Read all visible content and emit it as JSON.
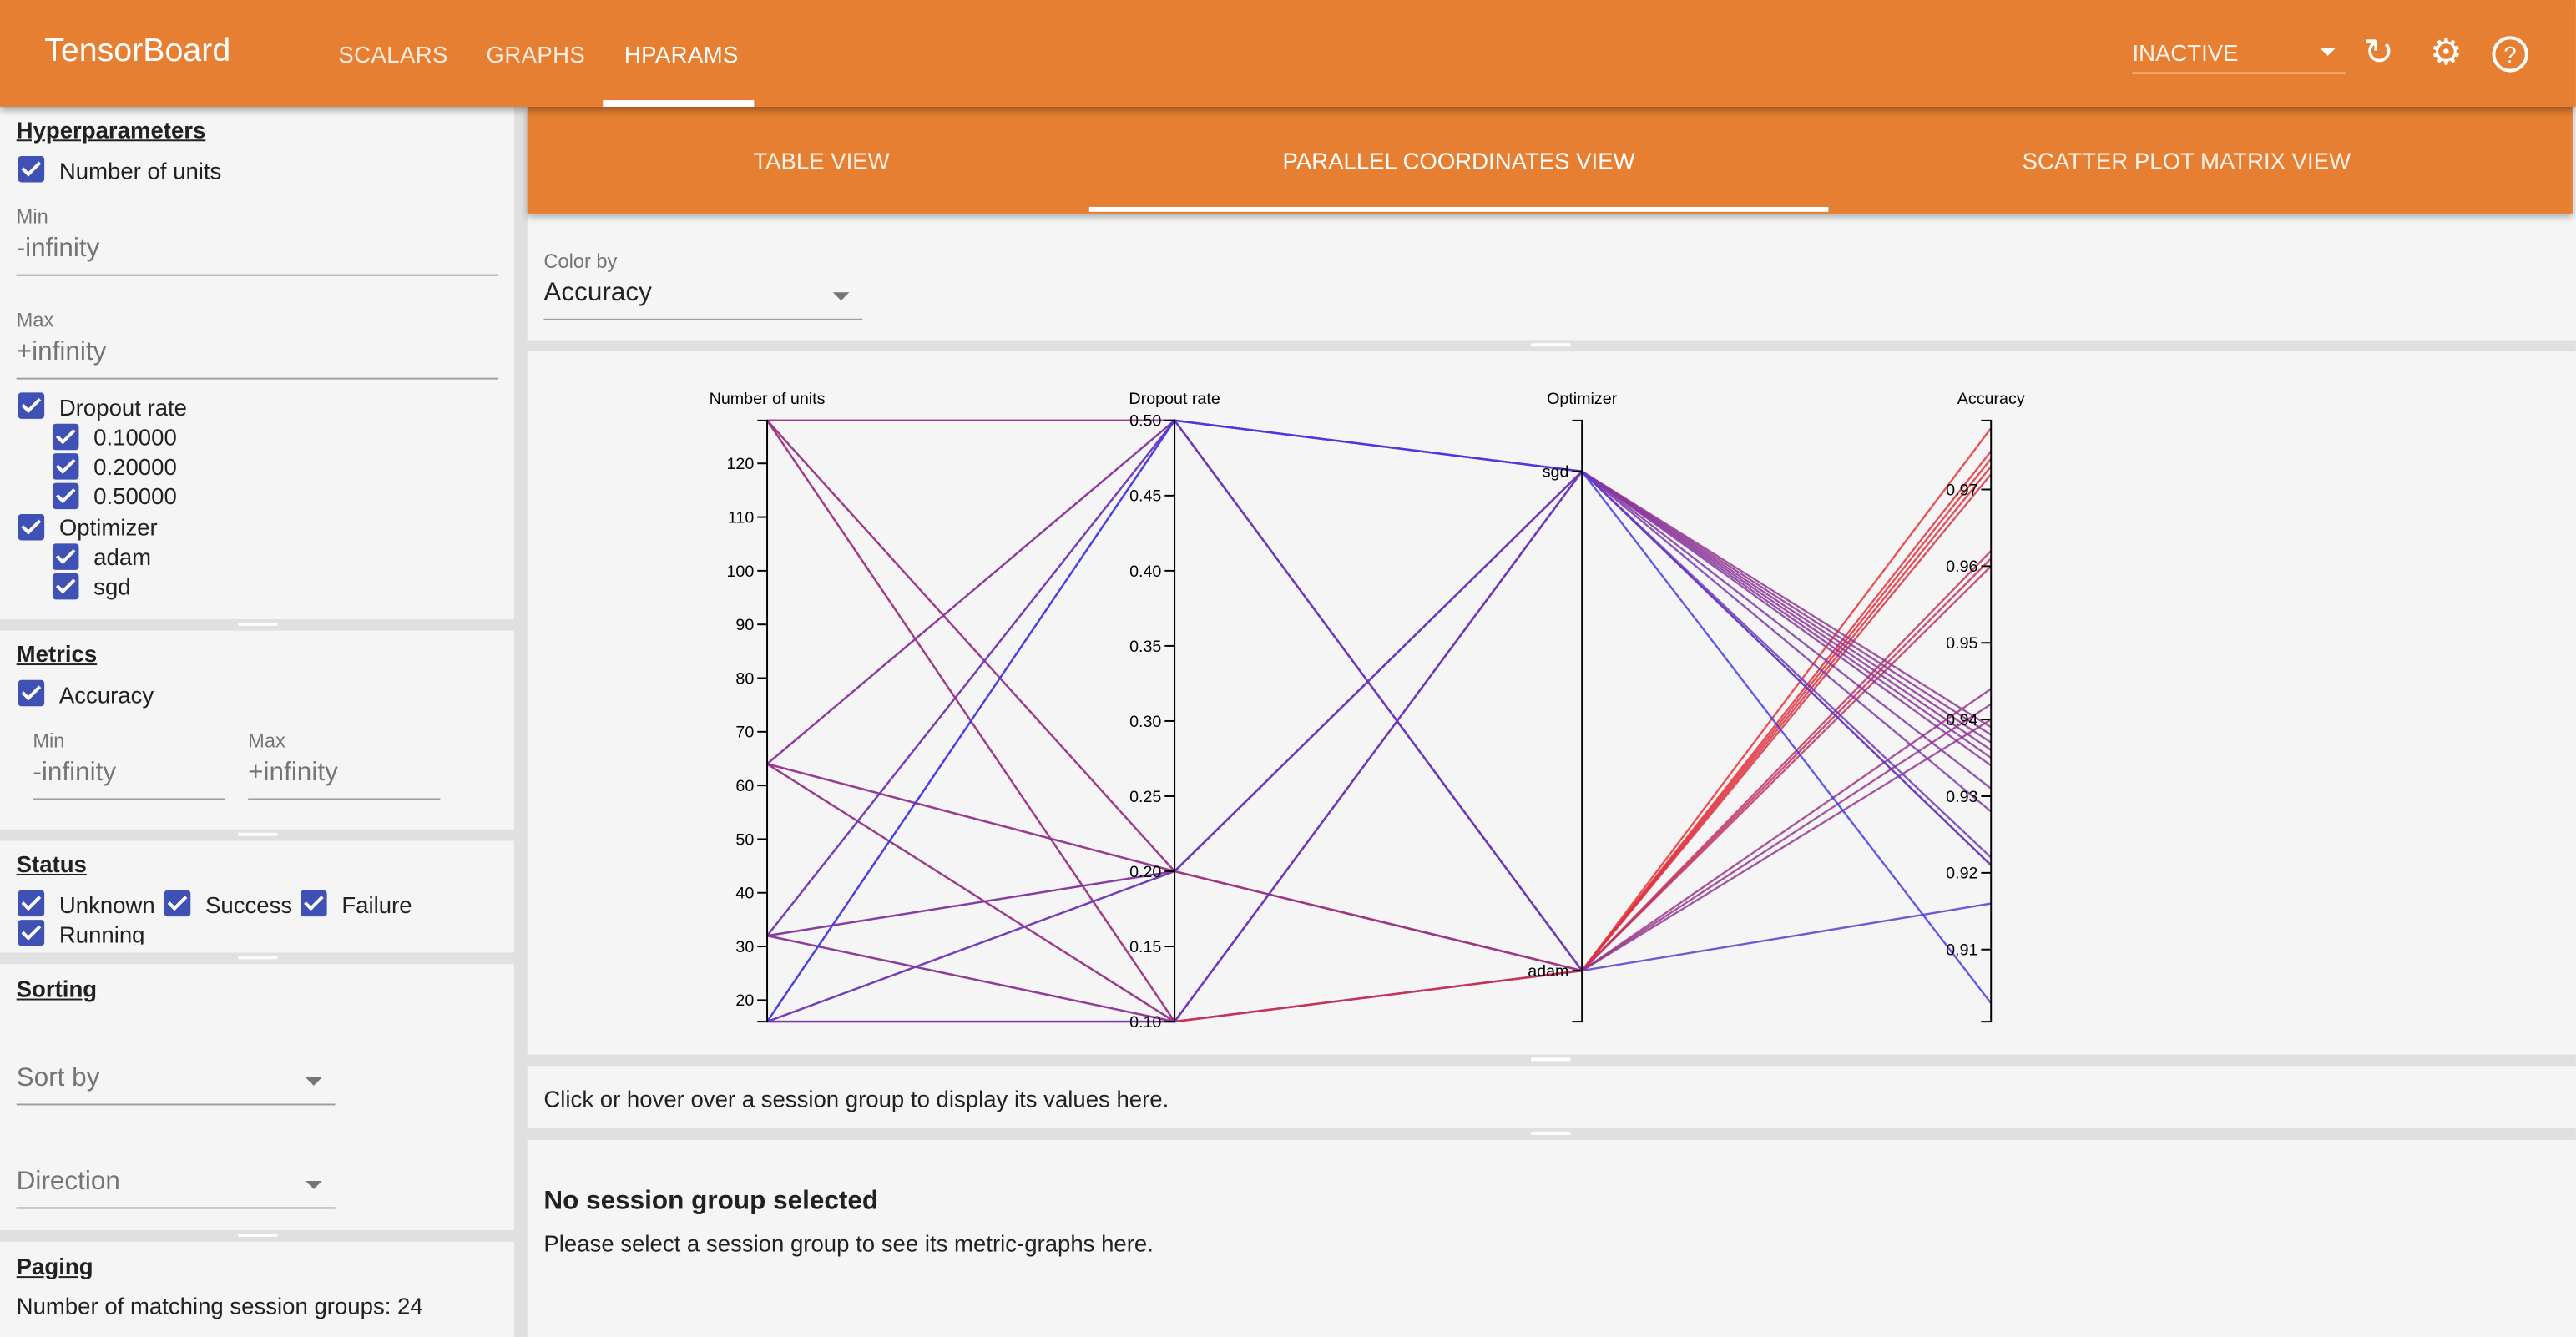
{
  "header": {
    "brand": "TensorBoard",
    "tabs": [
      {
        "label": "SCALARS"
      },
      {
        "label": "GRAPHS"
      },
      {
        "label": "HPARAMS",
        "active": true
      }
    ],
    "run_selector": "INACTIVE",
    "icons": [
      "refresh-icon",
      "settings-gear-icon",
      "help-icon"
    ],
    "color": "#e67f31"
  },
  "subtabs": [
    {
      "label": "TABLE VIEW"
    },
    {
      "label": "PARALLEL COORDINATES VIEW",
      "active": true
    },
    {
      "label": "SCATTER PLOT MATRIX VIEW"
    }
  ],
  "sidebar": {
    "hyperparameters": {
      "title": "Hyperparameters",
      "units": {
        "label": "Number of units",
        "checked": true,
        "min_label": "Min",
        "min": "-infinity",
        "max_label": "Max",
        "max": "+infinity"
      },
      "dropout": {
        "label": "Dropout rate",
        "checked": true,
        "values": [
          "0.10000",
          "0.20000",
          "0.50000"
        ]
      },
      "optimizer": {
        "label": "Optimizer",
        "checked": true,
        "values": [
          "adam",
          "sgd"
        ]
      }
    },
    "metrics": {
      "title": "Metrics",
      "accuracy": {
        "label": "Accuracy",
        "checked": true,
        "min_label": "Min",
        "min": "-infinity",
        "max_label": "Max",
        "max": "+infinity"
      }
    },
    "status": {
      "title": "Status",
      "items": [
        "Unknown",
        "Success",
        "Failure",
        "Running"
      ]
    },
    "sorting": {
      "title": "Sorting",
      "sort_by": "Sort by",
      "direction": "Direction"
    },
    "paging": {
      "title": "Paging",
      "matching": "Number of matching session groups: 24"
    }
  },
  "main": {
    "color_by_label": "Color by",
    "color_by": "Accuracy",
    "hover_hint": "Click or hover over a session group to display its values here.",
    "no_selection_title": "No session group selected",
    "no_selection_text": "Please select a session group to see its metric-graphs here."
  },
  "chart_data": {
    "type": "parallel_coordinates",
    "axes": [
      {
        "name": "Number of units",
        "range": [
          16,
          128
        ],
        "ticks": [
          20,
          30,
          40,
          50,
          60,
          70,
          80,
          90,
          100,
          110,
          120
        ]
      },
      {
        "name": "Dropout rate",
        "range": [
          0.1,
          0.5
        ],
        "ticks": [
          "0.10",
          "0.15",
          "0.20",
          "0.25",
          "0.30",
          "0.35",
          "0.40",
          "0.45",
          "0.50"
        ]
      },
      {
        "name": "Optimizer",
        "categories": [
          "sgd",
          "adam"
        ]
      },
      {
        "name": "Accuracy",
        "range": [
          0.9006,
          0.979
        ],
        "ticks": [
          "0.91",
          "0.92",
          "0.93",
          "0.94",
          "0.95",
          "0.96",
          "0.97"
        ]
      }
    ],
    "color_by": "Accuracy",
    "color_low": "#3c3cf0",
    "color_high": "#eb3232",
    "sessions": [
      [
        128,
        0.1,
        "adam",
        0.978
      ],
      [
        128,
        0.2,
        "adam",
        0.975
      ],
      [
        128,
        0.5,
        "adam",
        0.962
      ],
      [
        64,
        0.1,
        "adam",
        0.974
      ],
      [
        64,
        0.2,
        "adam",
        0.973
      ],
      [
        64,
        0.5,
        "adam",
        0.944
      ],
      [
        32,
        0.1,
        "adam",
        0.972
      ],
      [
        32,
        0.2,
        "adam",
        0.961
      ],
      [
        32,
        0.5,
        "adam",
        0.942
      ],
      [
        16,
        0.1,
        "adam",
        0.96
      ],
      [
        16,
        0.2,
        "adam",
        0.94
      ],
      [
        16,
        0.5,
        "adam",
        0.916
      ],
      [
        128,
        0.1,
        "sgd",
        0.939
      ],
      [
        128,
        0.2,
        "sgd",
        0.938
      ],
      [
        128,
        0.5,
        "sgd",
        0.937
      ],
      [
        64,
        0.1,
        "sgd",
        0.936
      ],
      [
        64,
        0.2,
        "sgd",
        0.935
      ],
      [
        64,
        0.5,
        "sgd",
        0.934
      ],
      [
        32,
        0.1,
        "sgd",
        0.931
      ],
      [
        32,
        0.2,
        "sgd",
        0.928
      ],
      [
        32,
        0.5,
        "sgd",
        0.922
      ],
      [
        16,
        0.1,
        "sgd",
        0.921
      ],
      [
        16,
        0.2,
        "sgd",
        0.921
      ],
      [
        16,
        0.5,
        "sgd",
        0.903
      ]
    ]
  }
}
